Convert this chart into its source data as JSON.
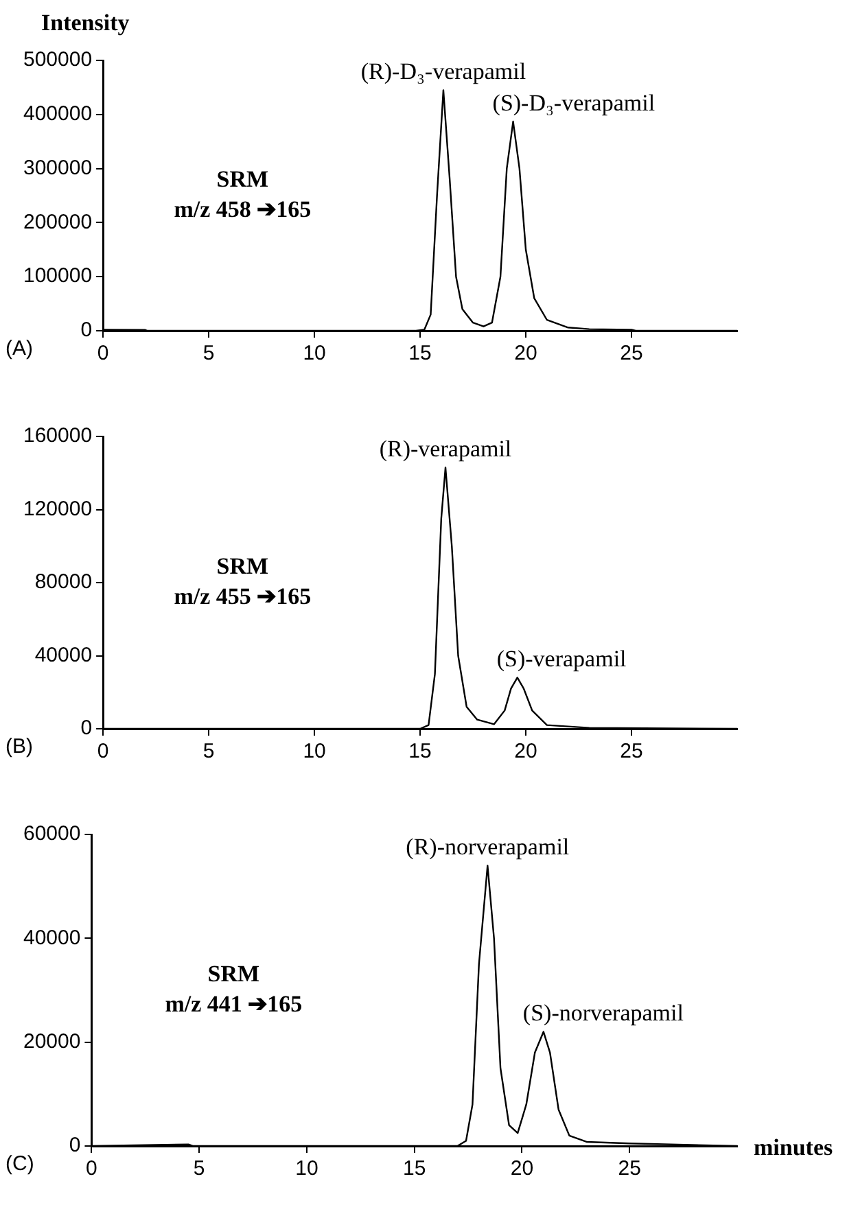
{
  "chart_data": [
    {
      "type": "line",
      "color": "#000000",
      "marker": "none",
      "ylabel": "Intensity",
      "xlim": [
        0,
        30
      ],
      "xticks": [
        0,
        5,
        10,
        15,
        20,
        25
      ],
      "ylim": [
        0,
        500000
      ],
      "yticks": [
        0,
        100000,
        200000,
        300000,
        400000,
        500000
      ],
      "x": [
        0,
        2,
        2.1,
        14.8,
        15.2,
        15.5,
        15.8,
        16.1,
        16.4,
        16.7,
        17,
        17.5,
        18,
        18.4,
        18.8,
        19.1,
        19.4,
        19.7,
        20,
        20.4,
        21,
        22,
        23,
        25,
        25.2,
        30
      ],
      "values": [
        2000,
        1500,
        0,
        0,
        2000,
        30000,
        250000,
        445000,
        280000,
        100000,
        40000,
        15000,
        8000,
        15000,
        100000,
        300000,
        387000,
        300000,
        150000,
        60000,
        20000,
        6000,
        3000,
        2000,
        0,
        0
      ],
      "annotations": [
        "(A)",
        "SRM\nm/z 458 ➔165",
        {
          "text": "(R)-D₃-verapamil",
          "x": 16.1,
          "y": 445000
        },
        {
          "text": "(S)-D₃-verapamil",
          "x": 19.4,
          "y": 387000
        }
      ]
    },
    {
      "type": "line",
      "color": "#000000",
      "marker": "none",
      "xlim": [
        0,
        30
      ],
      "xticks": [
        0,
        5,
        10,
        15,
        20,
        25
      ],
      "ylim": [
        0,
        160000
      ],
      "yticks": [
        0,
        40000,
        80000,
        120000,
        160000
      ],
      "x": [
        0,
        15,
        15.4,
        15.7,
        16,
        16.2,
        16.5,
        16.8,
        17.2,
        17.7,
        18.5,
        19,
        19.3,
        19.6,
        19.9,
        20.3,
        21,
        23,
        30
      ],
      "values": [
        0,
        0,
        2000,
        30000,
        115000,
        143000,
        100000,
        40000,
        12000,
        5000,
        2500,
        10000,
        22000,
        28000,
        22000,
        10000,
        2000,
        500,
        0
      ],
      "annotations": [
        "(B)",
        "SRM\nm/z 455 ➔165",
        {
          "text": "(R)-verapamil",
          "x": 16.2,
          "y": 143000
        },
        {
          "text": "(S)-verapamil",
          "x": 19.6,
          "y": 28000
        }
      ]
    },
    {
      "type": "line",
      "color": "#000000",
      "marker": "none",
      "xlabel": "minutes",
      "xlim": [
        0,
        30
      ],
      "xticks": [
        0,
        5,
        10,
        15,
        20,
        25
      ],
      "ylim": [
        0,
        60000
      ],
      "yticks": [
        0,
        20000,
        40000,
        60000
      ],
      "x": [
        0,
        4.5,
        4.7,
        17,
        17.4,
        17.7,
        18,
        18.4,
        18.7,
        19,
        19.4,
        19.8,
        20.2,
        20.6,
        21,
        21.3,
        21.7,
        22.2,
        23,
        25,
        30
      ],
      "values": [
        0,
        300,
        0,
        0,
        1000,
        8000,
        35000,
        54000,
        40000,
        15000,
        4000,
        2500,
        8000,
        18000,
        22000,
        18000,
        7000,
        2000,
        800,
        500,
        0
      ],
      "annotations": [
        "(C)",
        "SRM\nm/z 441 ➔165",
        {
          "text": "(R)-norverapamil",
          "x": 18.4,
          "y": 54000
        },
        {
          "text": "(S)-norverapamil",
          "x": 21,
          "y": 22000
        }
      ]
    }
  ]
}
